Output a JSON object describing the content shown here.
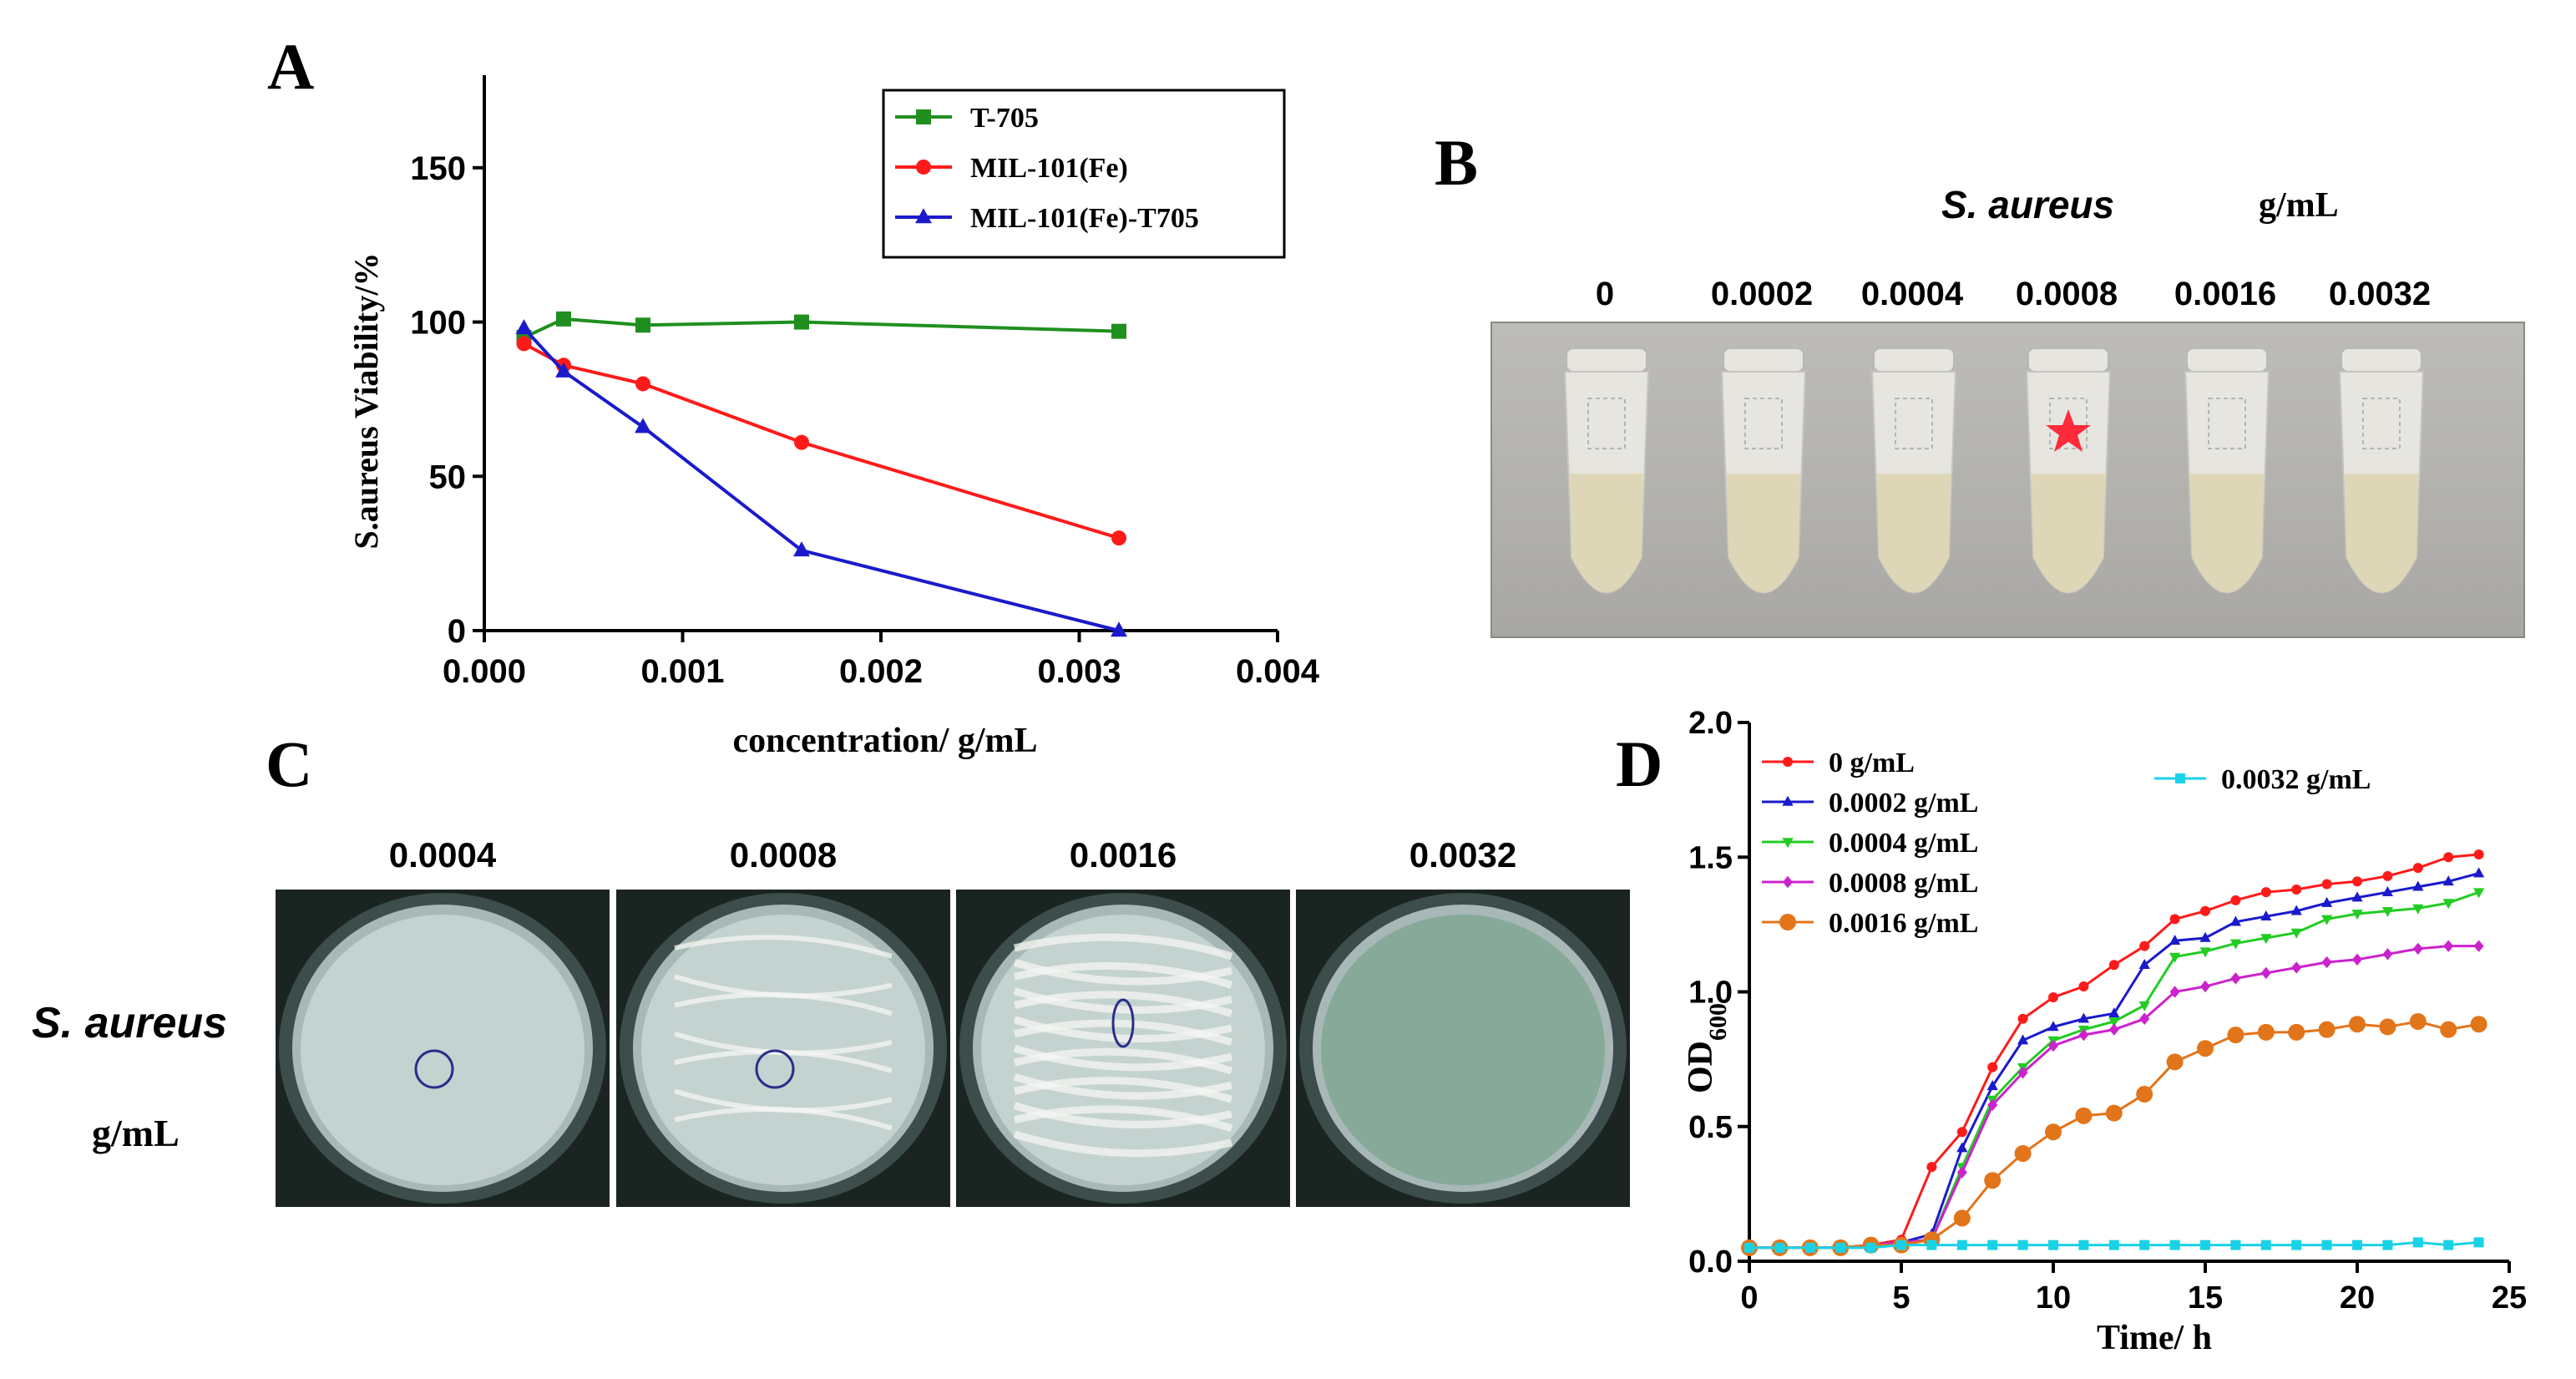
{
  "figure": {
    "panel_labels": {
      "a": "A",
      "b": "B",
      "c": "C",
      "d": "D"
    }
  },
  "panel_b": {
    "title_organism": "S. aureus",
    "title_unit": "g/mL",
    "concentrations": [
      "0",
      "0.0002",
      "0.0004",
      "0.0008",
      "0.0016",
      "0.0032"
    ],
    "marked_tube_index": 3
  },
  "panel_c": {
    "row_label_organism": "S. aureus",
    "row_label_unit": "g/mL",
    "concentrations": [
      "0.0004",
      "0.0008",
      "0.0016",
      "0.0032"
    ]
  },
  "chart_data": [
    {
      "panel": "A",
      "type": "line",
      "xlabel": "concentration/ g/mL",
      "ylabel": "S.aureus Viability/%",
      "xlim": [
        0.0,
        0.004
      ],
      "ylim": [
        0,
        180
      ],
      "xticks": [
        "0.000",
        "0.001",
        "0.002",
        "0.003",
        "0.004"
      ],
      "yticks": [
        "0",
        "50",
        "100",
        "150"
      ],
      "legend_position": "top-right",
      "series": [
        {
          "name": "T-705",
          "color": "#1f8f1f",
          "marker": "square",
          "x": [
            0.0002,
            0.0004,
            0.0008,
            0.0016,
            0.0032
          ],
          "y": [
            95,
            101,
            99,
            100,
            97
          ]
        },
        {
          "name": "MIL-101(Fe)",
          "color": "#ff1a1a",
          "marker": "circle",
          "x": [
            0.0002,
            0.0004,
            0.0008,
            0.0016,
            0.0032
          ],
          "y": [
            93,
            86,
            80,
            61,
            30
          ]
        },
        {
          "name": "MIL-101(Fe)-T705",
          "color": "#1a1acc",
          "marker": "triangle",
          "x": [
            0.0002,
            0.0004,
            0.0008,
            0.0016,
            0.0032
          ],
          "y": [
            98,
            84,
            66,
            26,
            0
          ]
        }
      ]
    },
    {
      "panel": "D",
      "type": "line",
      "xlabel": "Time/ h",
      "ylabel": "OD600",
      "ylabel_main": "OD",
      "ylabel_sub": "600",
      "xlim": [
        0,
        25
      ],
      "ylim": [
        0,
        2.0
      ],
      "xticks": [
        "0",
        "5",
        "10",
        "15",
        "20",
        "25"
      ],
      "yticks": [
        "0.0",
        "0.5",
        "1.0",
        "1.5",
        "2.0"
      ],
      "legend_position": "top-left",
      "x": [
        0,
        1,
        2,
        3,
        4,
        5,
        6,
        7,
        8,
        9,
        10,
        11,
        12,
        13,
        14,
        15,
        16,
        17,
        18,
        19,
        20,
        21,
        22,
        23,
        24
      ],
      "series": [
        {
          "name": "0 g/mL",
          "color": "#ff1a1a",
          "marker": "circle",
          "values": [
            0.05,
            0.05,
            0.05,
            0.05,
            0.06,
            0.08,
            0.35,
            0.48,
            0.72,
            0.9,
            0.98,
            1.02,
            1.1,
            1.17,
            1.27,
            1.3,
            1.34,
            1.37,
            1.38,
            1.4,
            1.41,
            1.43,
            1.46,
            1.5,
            1.51
          ]
        },
        {
          "name": "0.0002 g/mL",
          "color": "#1a1acc",
          "marker": "triangle",
          "values": [
            0.05,
            0.05,
            0.05,
            0.05,
            0.06,
            0.07,
            0.1,
            0.42,
            0.65,
            0.82,
            0.87,
            0.9,
            0.92,
            1.1,
            1.19,
            1.2,
            1.26,
            1.28,
            1.3,
            1.33,
            1.35,
            1.37,
            1.39,
            1.41,
            1.44
          ]
        },
        {
          "name": "0.0004 g/mL",
          "color": "#22cc22",
          "marker": "triangle-down",
          "values": [
            0.05,
            0.05,
            0.05,
            0.05,
            0.06,
            0.07,
            0.08,
            0.35,
            0.6,
            0.72,
            0.82,
            0.86,
            0.89,
            0.95,
            1.13,
            1.15,
            1.18,
            1.2,
            1.22,
            1.27,
            1.29,
            1.3,
            1.31,
            1.33,
            1.37
          ]
        },
        {
          "name": "0.0008 g/mL",
          "color": "#cc22cc",
          "marker": "diamond",
          "values": [
            0.05,
            0.05,
            0.05,
            0.05,
            0.06,
            0.07,
            0.08,
            0.33,
            0.58,
            0.7,
            0.8,
            0.84,
            0.86,
            0.9,
            1.0,
            1.02,
            1.05,
            1.07,
            1.09,
            1.11,
            1.12,
            1.14,
            1.16,
            1.17,
            1.17
          ]
        },
        {
          "name": "0.0016 g/mL",
          "color": "#e2741a",
          "marker": "circle",
          "values": [
            0.05,
            0.05,
            0.05,
            0.05,
            0.06,
            0.06,
            0.08,
            0.16,
            0.3,
            0.4,
            0.48,
            0.54,
            0.55,
            0.62,
            0.74,
            0.79,
            0.84,
            0.85,
            0.85,
            0.86,
            0.88,
            0.87,
            0.89,
            0.86,
            0.88
          ]
        },
        {
          "name": "0.0032 g/mL",
          "color": "#1ad2e6",
          "marker": "square",
          "values": [
            0.05,
            0.05,
            0.05,
            0.05,
            0.05,
            0.06,
            0.06,
            0.06,
            0.06,
            0.06,
            0.06,
            0.06,
            0.06,
            0.06,
            0.06,
            0.06,
            0.06,
            0.06,
            0.06,
            0.06,
            0.06,
            0.06,
            0.07,
            0.06,
            0.07
          ]
        }
      ]
    }
  ]
}
